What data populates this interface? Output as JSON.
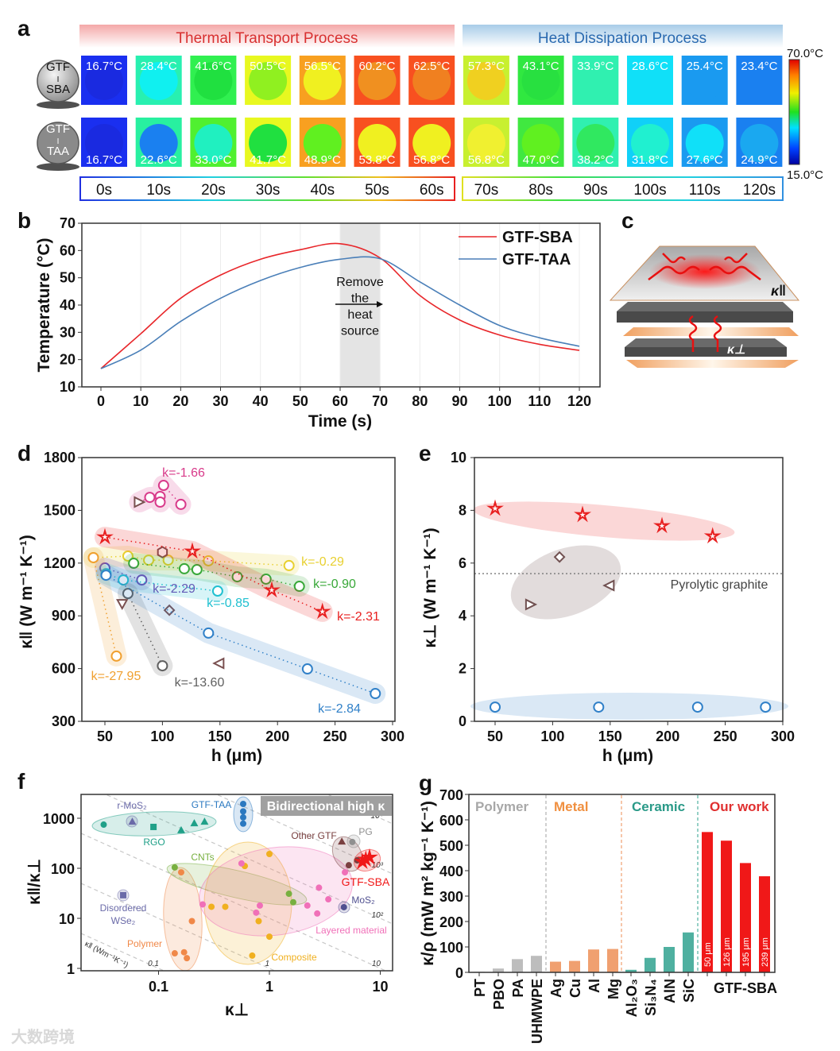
{
  "panel_labels": {
    "a": "a",
    "b": "b",
    "c": "c",
    "d": "d",
    "e": "e",
    "f": "f",
    "g": "g"
  },
  "watermark": "大数跨境",
  "colors": {
    "sba": "#e8262a",
    "taa": "#4a7fb8",
    "polymer": "#a8a8a8",
    "metal": "#f0a070",
    "ceramic": "#4fb0a0",
    "ours": "#f01818"
  },
  "chart_data": [
    {
      "panel": "a",
      "type": "heatmap",
      "headers": {
        "left": "Thermal Transport Process",
        "right": "Heat Dissipation Process"
      },
      "samples": [
        {
          "label_lines": [
            "GTF",
            "I",
            "SBA"
          ],
          "temps": [
            "16.7°C",
            "28.4°C",
            "41.6°C",
            "50.5°C",
            "56.5°C",
            "60.2°C",
            "62.5°C",
            "57.3°C",
            "43.1°C",
            "33.9°C",
            "28.6°C",
            "25.4°C",
            "23.4°C"
          ],
          "outer": [
            "#1a2ff0",
            "#28f0b0",
            "#30f050",
            "#e8f820",
            "#f8a020",
            "#f85020",
            "#f85020",
            "#c8f030",
            "#30e840",
            "#30f0b0",
            "#10e0f8",
            "#1a9af0",
            "#1a80f0"
          ],
          "inner": [
            "#1a2ae0",
            "#10f0f0",
            "#20e040",
            "#90f020",
            "#f0f020",
            "#f09020",
            "#f08020",
            "#f0d020",
            "#28e040",
            "#30f0b0",
            "#10e0f8",
            "#1a9af0",
            "#1a80f0"
          ]
        },
        {
          "label_lines": [
            "GTF",
            "I",
            "TAA"
          ],
          "temps": [
            "16.7°C",
            "22.6°C",
            "33.0°C",
            "41.7°C",
            "48.9°C",
            "53.8°C",
            "56.8°C",
            "56.8°C",
            "47.0°C",
            "38.2°C",
            "31.8°C",
            "27.6°C",
            "24.9°C"
          ],
          "outer": [
            "#1a2ff0",
            "#28f0a0",
            "#50f030",
            "#e8f820",
            "#f8a020",
            "#f85020",
            "#f85020",
            "#c8f030",
            "#40e840",
            "#30f0b0",
            "#10d0f8",
            "#1a9af0",
            "#1a80f0"
          ],
          "inner": [
            "#1a2ae0",
            "#1a80f0",
            "#20f0c0",
            "#20e040",
            "#60f020",
            "#f0f020",
            "#f0f020",
            "#f0f030",
            "#60f020",
            "#30e860",
            "#20f0d0",
            "#10e0f8",
            "#1aa8f0"
          ]
        }
      ],
      "times": [
        "0s",
        "10s",
        "20s",
        "30s",
        "40s",
        "50s",
        "60s",
        "70s",
        "80s",
        "90s",
        "100s",
        "110s",
        "120s"
      ],
      "colorbar": {
        "max": "70.0°C",
        "min": "15.0°C"
      }
    },
    {
      "panel": "b",
      "type": "line",
      "xlabel": "Time (s)",
      "ylabel": "Temperature (°C)",
      "xlim": [
        0,
        120
      ],
      "ylim": [
        10,
        70
      ],
      "xticks": [
        "0",
        "10",
        "20",
        "30",
        "40",
        "50",
        "60",
        "70",
        "80",
        "90",
        "100",
        "110",
        "120"
      ],
      "yticks": [
        "10",
        "20",
        "30",
        "40",
        "50",
        "60",
        "70"
      ],
      "x": [
        0,
        10,
        20,
        30,
        40,
        50,
        60,
        70,
        80,
        90,
        100,
        110,
        120
      ],
      "series": [
        {
          "name": "GTF-SBA",
          "values": [
            16.7,
            29.5,
            42.5,
            51,
            56.8,
            60.3,
            62.5,
            57.3,
            43.5,
            34.5,
            29,
            25.6,
            23.4
          ]
        },
        {
          "name": "GTF-TAA",
          "values": [
            16.7,
            23.5,
            34,
            42.5,
            49,
            53.8,
            56.8,
            57,
            48.5,
            40,
            32.5,
            28,
            24.9
          ]
        }
      ],
      "annotation_lines": [
        "Remove",
        "the",
        "heat",
        "source"
      ],
      "shaded_range": [
        60,
        70
      ]
    },
    {
      "panel": "c",
      "type": "diagram",
      "labels": {
        "parallel": "κ‖",
        "perp": "κ⊥"
      }
    },
    {
      "panel": "d",
      "type": "scatter",
      "xlabel": "h (μm)",
      "ylabel": "κ‖ (W m⁻¹ K⁻¹)",
      "xlim": [
        30,
        300
      ],
      "ylim": [
        300,
        1800
      ],
      "xticks": [
        "50",
        "100",
        "150",
        "200",
        "250",
        "300"
      ],
      "yticks": [
        "300",
        "600",
        "900",
        "1200",
        "1500",
        "1800"
      ],
      "groups": [
        {
          "k": "k=-1.66",
          "color": "#d83a8a",
          "points": [
            [
              89,
              1574,
              "o"
            ],
            [
              98,
              1579,
              "o"
            ],
            [
              101,
              1642,
              "o"
            ],
            [
              98,
              1547,
              "o"
            ],
            [
              116,
              1534,
              "o"
            ],
            [
              80,
              1547,
              "tri-right"
            ]
          ]
        },
        {
          "k": "k=-0.29",
          "color": "#e8d030",
          "points": [
            [
              40,
              1231,
              "o"
            ],
            [
              70,
              1240,
              "o"
            ],
            [
              88,
              1217,
              "o"
            ],
            [
              105,
              1217,
              "o"
            ],
            [
              140,
              1213,
              "o"
            ],
            [
              210,
              1186,
              "o"
            ],
            [
              100,
              1262,
              "hex"
            ]
          ]
        },
        {
          "k": "k=-0.90",
          "color": "#38a838",
          "points": [
            [
              75,
              1199,
              "o"
            ],
            [
              119,
              1168,
              "o"
            ],
            [
              130,
              1163,
              "o"
            ],
            [
              165,
              1122,
              "o"
            ],
            [
              190,
              1109,
              "o"
            ],
            [
              219,
              1068,
              "o"
            ]
          ]
        },
        {
          "k": "k=-2.29",
          "color": "#7040b0",
          "points": [
            [
              50,
              1172,
              "o"
            ],
            [
              82,
              1104,
              "o"
            ]
          ]
        },
        {
          "k": "k=-0.85",
          "color": "#20c0d0",
          "points": [
            [
              51,
              1140,
              "o"
            ],
            [
              66,
              1104,
              "o"
            ],
            [
              148,
              1041,
              "o"
            ]
          ]
        },
        {
          "k": "k=-2.31",
          "color": "#e82020",
          "points": [
            [
              50,
              1348,
              "star"
            ],
            [
              126,
              1267,
              "star"
            ],
            [
              195,
              1046,
              "star"
            ],
            [
              239,
              924,
              "star"
            ]
          ]
        },
        {
          "k": "k=-27.95",
          "color": "#f0a030",
          "points": [
            [
              40,
              1231,
              "o"
            ],
            [
              60,
              671,
              "o"
            ]
          ]
        },
        {
          "k": "k=-13.60",
          "color": "#606060",
          "points": [
            [
              70,
              1027,
              "o"
            ],
            [
              100,
              616,
              "o"
            ],
            [
              65,
              969,
              "tri-down"
            ],
            [
              106,
              932,
              "diamond"
            ],
            [
              149,
              630,
              "tri-left"
            ]
          ]
        },
        {
          "k": "k=-2.84",
          "color": "#3080c8",
          "points": [
            [
              51,
              1131,
              "o"
            ],
            [
              140,
              802,
              "o"
            ],
            [
              226,
              598,
              "o"
            ],
            [
              285,
              458,
              "o"
            ]
          ]
        }
      ]
    },
    {
      "panel": "e",
      "type": "scatter",
      "xlabel": "h (μm)",
      "ylabel": "κ⊥ (W m⁻¹ K⁻¹)",
      "xlim": [
        32,
        300
      ],
      "ylim": [
        0,
        10
      ],
      "xticks": [
        "50",
        "100",
        "150",
        "200",
        "250",
        "300"
      ],
      "yticks": [
        "0",
        "2",
        "4",
        "6",
        "8",
        "10"
      ],
      "reference": {
        "label": "Pyrolytic graphite",
        "value": 5.6
      },
      "groups": [
        {
          "color": "#e82020",
          "points": [
            [
              50,
              8.07,
              "star"
            ],
            [
              126,
              7.83,
              "star"
            ],
            [
              195,
              7.41,
              "star"
            ],
            [
              239,
              7.02,
              "star"
            ]
          ]
        },
        {
          "color": "#705050",
          "points": [
            [
              106,
              6.23,
              "diamond"
            ],
            [
              81,
              4.43,
              "tri-right"
            ],
            [
              149,
              5.15,
              "tri-left"
            ]
          ]
        },
        {
          "color": "#3080c8",
          "points": [
            [
              50,
              0.54,
              "o"
            ],
            [
              140,
              0.54,
              "o"
            ],
            [
              226,
              0.54,
              "o"
            ],
            [
              285,
              0.54,
              "o"
            ]
          ]
        }
      ]
    },
    {
      "panel": "f",
      "type": "scatter",
      "xlabel": "κ⊥",
      "ylabel": "κ‖/κ⊥",
      "xscale": "log",
      "yscale": "log",
      "xlim": [
        0.024,
        13
      ],
      "ylim": [
        1,
        2800
      ],
      "xticks": [
        "0.1",
        "1",
        "10"
      ],
      "yticks": [
        "1",
        "10",
        "100",
        "1000"
      ],
      "banner": "Bidirectional high κ",
      "iso_label": "κ‖ (Wm⁻¹K⁻¹)",
      "iso_lines": [
        {
          "v": 0.1,
          "label": "0.1"
        },
        {
          "v": 1,
          "label": "1"
        },
        {
          "v": 10,
          "label": "10"
        },
        {
          "v": 100,
          "label": "10²"
        },
        {
          "v": 1000,
          "label": "10³"
        },
        {
          "v": 10000,
          "label": "10⁴"
        }
      ],
      "groups": [
        {
          "name": "RGO",
          "color": "#20a088",
          "marker": "mixed",
          "points": [
            [
              0.032,
              745
            ],
            [
              0.09,
              670
            ],
            [
              0.16,
              580
            ],
            [
              0.21,
              800
            ],
            [
              0.26,
              860
            ]
          ]
        },
        {
          "name": "r-MoS₂",
          "color": "#6a6aa8",
          "points": [
            [
              0.058,
              860
            ]
          ]
        },
        {
          "name": "GTF-TAA",
          "color": "#2a78c0",
          "points": [
            [
              0.58,
              1930
            ],
            [
              0.58,
              1370
            ],
            [
              0.58,
              1040
            ],
            [
              0.58,
              780
            ]
          ]
        },
        {
          "name": "Disordered",
          "name2": "WSe₂",
          "color": "#6a6aa8",
          "points": [
            [
              0.048,
              29
            ]
          ]
        },
        {
          "name": "Polymer",
          "color": "#f08848",
          "points": [
            [
              0.16,
              83
            ],
            [
              0.2,
              8.8
            ],
            [
              0.14,
              2.0
            ],
            [
              0.17,
              2.1
            ],
            [
              0.18,
              1.6
            ]
          ]
        },
        {
          "name": "CNTs",
          "color": "#78b040",
          "points": [
            [
              0.14,
              104
            ],
            [
              1.5,
              31
            ],
            [
              1.64,
              21
            ]
          ]
        },
        {
          "name": "Composite",
          "color": "#f0b020",
          "points": [
            [
              1.0,
              193
            ],
            [
              0.6,
              111
            ],
            [
              0.3,
              17
            ],
            [
              0.4,
              17
            ],
            [
              0.8,
              8.8
            ],
            [
              1.0,
              4.3
            ],
            [
              0.7,
              1.8
            ]
          ]
        },
        {
          "name": "Layered material",
          "color": "#f070b8",
          "points": [
            [
              0.56,
              125
            ],
            [
              0.25,
              19
            ],
            [
              0.82,
              18
            ],
            [
              0.76,
              13
            ],
            [
              2.2,
              18
            ],
            [
              2.7,
              12.5
            ],
            [
              2.8,
              41
            ],
            [
              3.4,
              24
            ],
            [
              4.8,
              83
            ]
          ]
        },
        {
          "name": "MoS₂",
          "color": "#505090",
          "points": [
            [
              4.7,
              16.7
            ]
          ]
        },
        {
          "name": "Other GTF",
          "color": "#7a4040",
          "points": [
            [
              4.5,
              345
            ],
            [
              5.2,
              115
            ],
            [
              6.2,
              144
            ]
          ]
        },
        {
          "name": "PG",
          "color": "#909090",
          "points": [
            [
              5.6,
              335
            ]
          ]
        },
        {
          "name": "GTF-SBA",
          "color": "#f01818",
          "points": [
            [
              7.4,
              150
            ],
            [
              8.0,
              165
            ],
            [
              6.9,
              135
            ]
          ]
        }
      ]
    },
    {
      "panel": "g",
      "type": "bar",
      "ylabel": "κ/ρ (mW m² kg⁻¹ K⁻¹)",
      "ylim": [
        0,
        700
      ],
      "yticks": [
        "0",
        "100",
        "200",
        "300",
        "400",
        "500",
        "600",
        "700"
      ],
      "group_labels": [
        "Polymer",
        "Metal",
        "Ceramic",
        "Our work"
      ],
      "categories": [
        "PT",
        "PBO",
        "PA",
        "UHMWPE",
        "Ag",
        "Cu",
        "Al",
        "Mg",
        "Al₂O₃",
        "Si₃N₄",
        "AlN",
        "SiC",
        "50 μm",
        "126 μm",
        "195 μm",
        "239 μm"
      ],
      "groups": [
        "polymer",
        "polymer",
        "polymer",
        "polymer",
        "metal",
        "metal",
        "metal",
        "metal",
        "ceramic",
        "ceramic",
        "ceramic",
        "ceramic",
        "ours",
        "ours",
        "ours",
        "ours"
      ],
      "values": [
        2,
        15,
        52,
        65,
        42,
        45,
        90,
        92,
        10,
        57,
        100,
        157,
        552,
        518,
        430,
        378
      ],
      "ours_axis_label": "GTF-SBA"
    }
  ]
}
